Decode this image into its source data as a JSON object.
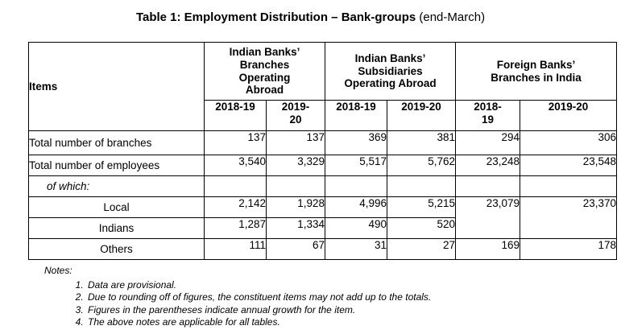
{
  "title": {
    "main": "Table 1: Employment Distribution – Bank-groups",
    "suffix": "(end-March)"
  },
  "table": {
    "items_header": "Items",
    "groups": [
      {
        "label": "Indian Banks’\nBranches\nOperating\nAbroad",
        "years": [
          "2018-19",
          "2019-\n20"
        ]
      },
      {
        "label": "Indian Banks’\nSubsidiaries\nOperating Abroad",
        "years": [
          "2018-19",
          "2019-20"
        ]
      },
      {
        "label": "Foreign Banks’\nBranches in India",
        "years": [
          "2018-\n19",
          "2019-20"
        ]
      }
    ],
    "rows": [
      {
        "label": "Total number of branches",
        "values": [
          "137",
          "137",
          "369",
          "381",
          "294",
          "306"
        ]
      },
      {
        "label": "Total number of employees",
        "values": [
          "3,540",
          "3,329",
          "5,517",
          "5,762",
          "23,248",
          "23,548"
        ]
      },
      {
        "label": "of which:",
        "values": [
          "",
          "",
          "",
          "",
          "",
          ""
        ]
      },
      {
        "label": "Local",
        "values": [
          "2,142",
          "1,928",
          "4,996",
          "5,215",
          "23,079",
          "23,370"
        ]
      },
      {
        "label": "Indians",
        "values": [
          "1,287",
          "1,334",
          "490",
          "520"
        ]
      },
      {
        "label": "Others",
        "values": [
          "111",
          "67",
          "31",
          "27",
          "169",
          "178"
        ]
      }
    ]
  },
  "notes": {
    "heading": "Notes:",
    "items": [
      "Data are provisional.",
      "Due to rounding off of figures, the constituent items may not add up to the totals.",
      "Figures in the parentheses indicate annual growth for the item.",
      "The above notes are applicable for all tables."
    ]
  },
  "colors": {
    "text": "#000000",
    "background": "#ffffff",
    "border": "#000000"
  }
}
